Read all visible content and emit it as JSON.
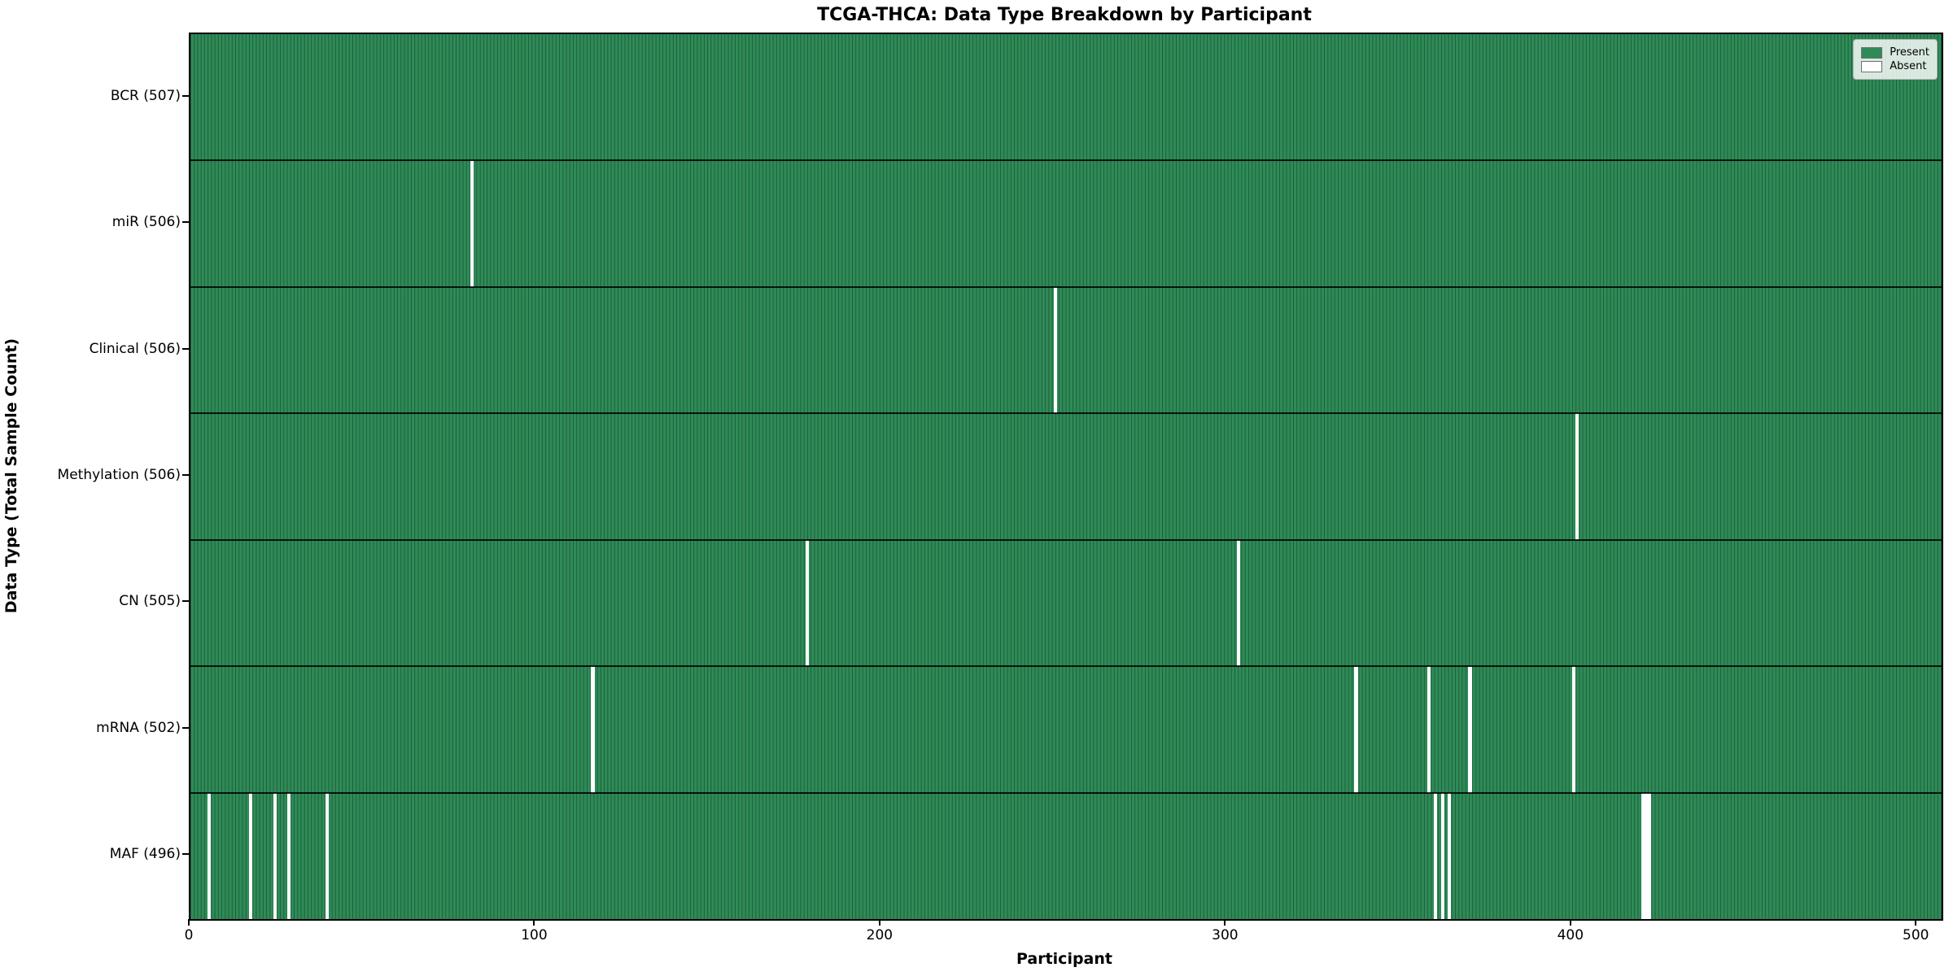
{
  "title": "TCGA-THCA: Data Type Breakdown by Participant",
  "xlabel": "Participant",
  "ylabel": "Data Type (Total Sample Count)",
  "legend": {
    "present_label": "Present",
    "absent_label": "Absent"
  },
  "colors": {
    "present": "#2e8b57",
    "absent": "#ffffff",
    "cell_edge": "rgba(10,40,25,0.45)",
    "row_separator": "rgba(0,0,0,0.85)",
    "axis": "#000000"
  },
  "chart_data": {
    "type": "heatmap",
    "title": "TCGA-THCA: Data Type Breakdown by Participant",
    "xlabel": "Participant",
    "ylabel": "Data Type (Total Sample Count)",
    "legend_entries": [
      "Present",
      "Absent"
    ],
    "legend_position": "upper right",
    "n_participants": 507,
    "x_ticks": [
      0,
      100,
      200,
      300,
      400,
      500
    ],
    "xlim": [
      0,
      507
    ],
    "grid": false,
    "rows": [
      {
        "label": "BCR (507)",
        "name": "BCR",
        "total": 507,
        "absent_participants": []
      },
      {
        "label": "miR (506)",
        "name": "miR",
        "total": 506,
        "absent_participants": [
          81
        ]
      },
      {
        "label": "Clinical (506)",
        "name": "Clinical",
        "total": 506,
        "absent_participants": [
          250
        ]
      },
      {
        "label": "Methylation (506)",
        "name": "Methylation",
        "total": 506,
        "absent_participants": [
          401
        ]
      },
      {
        "label": "CN (505)",
        "name": "CN",
        "total": 505,
        "absent_participants": [
          178,
          303
        ]
      },
      {
        "label": "mRNA (502)",
        "name": "mRNA",
        "total": 502,
        "absent_participants": [
          116,
          337,
          358,
          370,
          400
        ]
      },
      {
        "label": "MAF (496)",
        "name": "MAF",
        "total": 496,
        "absent_participants": [
          5,
          17,
          24,
          28,
          39,
          360,
          362,
          364,
          420,
          421,
          422
        ]
      }
    ]
  }
}
